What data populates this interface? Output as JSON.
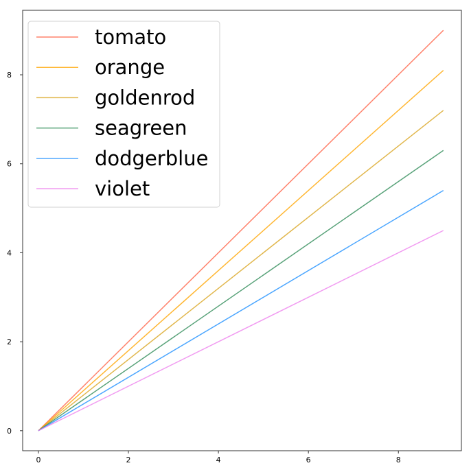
{
  "chart_data": {
    "type": "line",
    "title": "",
    "xlabel": "",
    "ylabel": "",
    "xlim": [
      -0.35,
      9.4
    ],
    "ylim": [
      -0.45,
      9.45
    ],
    "x_ticks": [
      0,
      2,
      4,
      6,
      8
    ],
    "y_ticks": [
      0,
      2,
      4,
      6,
      8
    ],
    "x_tick_labels": [
      "0",
      "2",
      "4",
      "6",
      "8"
    ],
    "y_tick_labels": [
      "0",
      "2",
      "4",
      "6",
      "8"
    ],
    "grid": false,
    "legend_position": "top-left",
    "x": [
      0,
      9
    ],
    "series": [
      {
        "name": "tomato",
        "color": "#ff6347",
        "values": [
          0,
          9.0
        ]
      },
      {
        "name": "orange",
        "color": "#ffa500",
        "values": [
          0,
          8.1
        ]
      },
      {
        "name": "goldenrod",
        "color": "#daa520",
        "values": [
          0,
          7.2
        ]
      },
      {
        "name": "seagreen",
        "color": "#2e8b57",
        "values": [
          0,
          6.3
        ]
      },
      {
        "name": "dodgerblue",
        "color": "#1e90ff",
        "values": [
          0,
          5.4
        ]
      },
      {
        "name": "violet",
        "color": "#ee82ee",
        "values": [
          0,
          4.5
        ]
      }
    ]
  }
}
